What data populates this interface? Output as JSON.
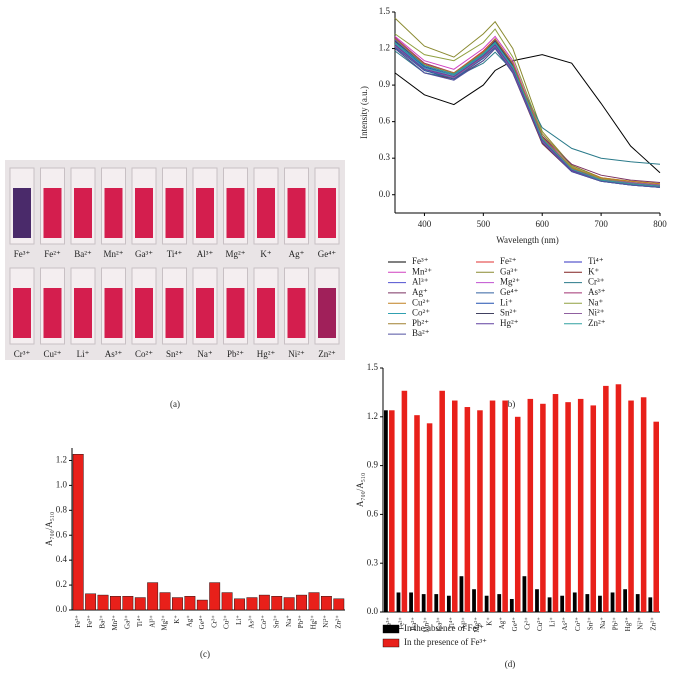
{
  "photo": {
    "caption": "(a)",
    "top_labels": [
      "Fe³⁺",
      "Fe²⁺",
      "Ba²⁺",
      "Mn²⁺",
      "Ga³⁺",
      "Ti⁴⁺",
      "Al³⁺",
      "Mg²⁺",
      "K⁺",
      "Ag⁺",
      "Ge⁴⁺"
    ],
    "bottom_labels": [
      "Cr³⁺",
      "Cu²⁺",
      "Li⁺",
      "As³⁺",
      "Co²⁺",
      "Sn²⁺",
      "Na⁺",
      "Pb²⁺",
      "Hg²⁺",
      "Ni²⁺",
      "Zn²⁺"
    ]
  },
  "chart_data": [
    {
      "type": "line",
      "caption": "(b)",
      "xlabel": "Wavelength (nm)",
      "ylabel": "Intensity (a.u.)",
      "x": [
        350,
        400,
        450,
        500,
        520,
        550,
        600,
        650,
        700,
        750,
        800
      ],
      "xlim": [
        350,
        800
      ],
      "xticks": [
        400,
        500,
        600,
        700,
        800
      ],
      "ylim": [
        -0.15,
        1.5
      ],
      "yticks": [
        {
          "value": 0,
          "label": "0.0"
        },
        0.3,
        0.6,
        0.9,
        1.2,
        1.5
      ],
      "series": [
        {
          "name": "Fe³⁺",
          "color": "#000000",
          "values": [
            1.0,
            0.82,
            0.74,
            0.9,
            1.02,
            1.1,
            1.15,
            1.08,
            0.75,
            0.4,
            0.18
          ]
        },
        {
          "name": "Fe²⁺",
          "color": "#e03030",
          "values": [
            1.28,
            1.08,
            1.0,
            1.18,
            1.28,
            1.08,
            0.5,
            0.24,
            0.14,
            0.1,
            0.08
          ]
        },
        {
          "name": "Ti⁴⁺",
          "color": "#3030c0",
          "values": [
            1.22,
            1.02,
            0.96,
            1.12,
            1.22,
            1.02,
            0.44,
            0.2,
            0.12,
            0.09,
            0.07
          ]
        },
        {
          "name": "Mn²⁺",
          "color": "#d040c0",
          "values": [
            1.3,
            1.1,
            1.03,
            1.2,
            1.3,
            1.1,
            0.48,
            0.22,
            0.13,
            0.1,
            0.08
          ]
        },
        {
          "name": "Ga³⁺",
          "color": "#8a8a30",
          "values": [
            1.45,
            1.22,
            1.13,
            1.32,
            1.42,
            1.2,
            0.52,
            0.24,
            0.14,
            0.11,
            0.09
          ]
        },
        {
          "name": "K⁺",
          "color": "#802020",
          "values": [
            1.2,
            1.0,
            0.95,
            1.1,
            1.2,
            1.0,
            0.42,
            0.19,
            0.11,
            0.08,
            0.06
          ]
        },
        {
          "name": "Al³⁺",
          "color": "#5050d0",
          "values": [
            1.27,
            1.06,
            0.99,
            1.16,
            1.26,
            1.06,
            0.46,
            0.21,
            0.12,
            0.09,
            0.07
          ]
        },
        {
          "name": "Mg²⁺",
          "color": "#c050d0",
          "values": [
            1.24,
            1.04,
            0.97,
            1.14,
            1.24,
            1.04,
            0.45,
            0.2,
            0.12,
            0.09,
            0.07
          ]
        },
        {
          "name": "Cr³⁺",
          "color": "#2a7a8a",
          "values": [
            1.18,
            1.0,
            0.96,
            1.08,
            1.17,
            1.02,
            0.55,
            0.38,
            0.3,
            0.27,
            0.25
          ]
        },
        {
          "name": "Ag⁺",
          "color": "#7a3060",
          "values": [
            1.26,
            1.05,
            0.98,
            1.15,
            1.25,
            1.06,
            0.48,
            0.25,
            0.16,
            0.12,
            0.1
          ]
        },
        {
          "name": "Ge⁴⁺",
          "color": "#3060a0",
          "values": [
            1.21,
            1.02,
            0.95,
            1.12,
            1.21,
            1.01,
            0.43,
            0.19,
            0.11,
            0.08,
            0.06
          ]
        },
        {
          "name": "As³⁺",
          "color": "#a03070",
          "values": [
            1.29,
            1.08,
            1.0,
            1.17,
            1.27,
            1.07,
            0.47,
            0.22,
            0.13,
            0.1,
            0.08
          ]
        },
        {
          "name": "Cu²⁺",
          "color": "#c08020",
          "values": [
            1.23,
            1.03,
            0.97,
            1.13,
            1.23,
            1.03,
            0.46,
            0.22,
            0.14,
            0.11,
            0.09
          ]
        },
        {
          "name": "Li⁺",
          "color": "#2050b0",
          "values": [
            1.25,
            1.05,
            0.98,
            1.15,
            1.25,
            1.05,
            0.45,
            0.2,
            0.12,
            0.09,
            0.07
          ]
        },
        {
          "name": "Na⁺",
          "color": "#90a040",
          "values": [
            1.32,
            1.15,
            1.1,
            1.25,
            1.36,
            1.13,
            0.5,
            0.23,
            0.13,
            0.1,
            0.08
          ]
        },
        {
          "name": "Co²⁺",
          "color": "#30a0b0",
          "values": [
            1.24,
            1.04,
            0.98,
            1.15,
            1.24,
            1.04,
            0.44,
            0.2,
            0.11,
            0.08,
            0.06
          ]
        },
        {
          "name": "Sn²⁺",
          "color": "#404060",
          "values": [
            1.26,
            1.06,
            0.99,
            1.16,
            1.26,
            1.06,
            0.46,
            0.21,
            0.12,
            0.09,
            0.07
          ]
        },
        {
          "name": "Ni²⁺",
          "color": "#9060a0",
          "values": [
            1.22,
            1.03,
            0.96,
            1.13,
            1.22,
            1.02,
            0.44,
            0.2,
            0.12,
            0.1,
            0.08
          ]
        },
        {
          "name": "Pb²⁺",
          "color": "#a08030",
          "values": [
            1.28,
            1.07,
            1.0,
            1.17,
            1.28,
            1.08,
            0.47,
            0.21,
            0.12,
            0.09,
            0.07
          ]
        },
        {
          "name": "Hg²⁺",
          "color": "#6040a0",
          "values": [
            1.23,
            1.03,
            0.97,
            1.14,
            1.23,
            1.03,
            0.45,
            0.2,
            0.12,
            0.09,
            0.07
          ]
        },
        {
          "name": "Zn²⁺",
          "color": "#30a0a0",
          "values": [
            1.25,
            1.06,
            0.99,
            1.16,
            1.25,
            1.05,
            0.46,
            0.21,
            0.12,
            0.09,
            0.07
          ]
        },
        {
          "name": "Ba²⁺",
          "color": "#5050a0",
          "values": [
            1.2,
            1.0,
            0.94,
            1.1,
            1.2,
            1.0,
            0.43,
            0.19,
            0.11,
            0.08,
            0.06
          ]
        }
      ]
    },
    {
      "type": "bar",
      "caption": "(c)",
      "ylabel": "A₇₀₀/A₅₁₀",
      "color": "#e8201a",
      "categories": [
        "Fe³⁺",
        "Fe²⁺",
        "Ba²⁺",
        "Mn²⁺",
        "Ga³⁺",
        "Ti⁴⁺",
        "Al³⁺",
        "Mg²⁺",
        "K⁺",
        "Ag⁺",
        "Ge⁴⁺",
        "Cr³⁺",
        "Cu²⁺",
        "Li⁺",
        "As³⁺",
        "Co²⁺",
        "Sn²⁺",
        "Na⁺",
        "Pb²⁺",
        "Hg²⁺",
        "Ni²⁺",
        "Zn²⁺"
      ],
      "values": [
        1.25,
        0.13,
        0.12,
        0.11,
        0.11,
        0.1,
        0.22,
        0.14,
        0.1,
        0.11,
        0.08,
        0.22,
        0.14,
        0.09,
        0.1,
        0.12,
        0.11,
        0.1,
        0.12,
        0.14,
        0.11,
        0.09
      ],
      "ylim": [
        0,
        1.3
      ],
      "yticks": [
        {
          "value": 0,
          "label": "0.0"
        },
        0.2,
        0.4,
        0.6,
        0.8,
        {
          "value": 1,
          "label": "1.0"
        },
        1.2
      ]
    },
    {
      "type": "grouped_bar",
      "caption": "(d)",
      "ylabel": "A₇₀₀/A₅₁₀",
      "categories": [
        "Fe³⁺",
        "Fe²⁺",
        "Ba²⁺",
        "Mn²⁺",
        "Ga³⁺",
        "Ti⁴⁺",
        "Al³⁺",
        "Mg²⁺",
        "K⁺",
        "Ag⁺",
        "Ge⁴⁺",
        "Cr³⁺",
        "Cu²⁺",
        "Li⁺",
        "As³⁺",
        "Co²⁺",
        "Sn²⁺",
        "Na⁺",
        "Pb²⁺",
        "Hg²⁺",
        "Ni²⁺",
        "Zn²⁺"
      ],
      "ylim": [
        0,
        1.5
      ],
      "yticks": [
        {
          "value": 0,
          "label": "0.0"
        },
        0.3,
        0.6,
        0.9,
        1.2,
        1.5
      ],
      "series": [
        {
          "name": "In the absence of Fe³⁺",
          "color": "#000000",
          "values": [
            1.24,
            0.12,
            0.12,
            0.11,
            0.11,
            0.1,
            0.22,
            0.14,
            0.1,
            0.11,
            0.08,
            0.22,
            0.14,
            0.09,
            0.1,
            0.12,
            0.11,
            0.1,
            0.12,
            0.14,
            0.11,
            0.09
          ]
        },
        {
          "name": "In the presence of Fe³⁺",
          "color": "#e8201a",
          "values": [
            1.24,
            1.36,
            1.21,
            1.16,
            1.36,
            1.3,
            1.26,
            1.24,
            1.3,
            1.3,
            1.2,
            1.31,
            1.28,
            1.34,
            1.29,
            1.31,
            1.27,
            1.39,
            1.4,
            1.3,
            1.32,
            1.17
          ]
        }
      ]
    }
  ]
}
